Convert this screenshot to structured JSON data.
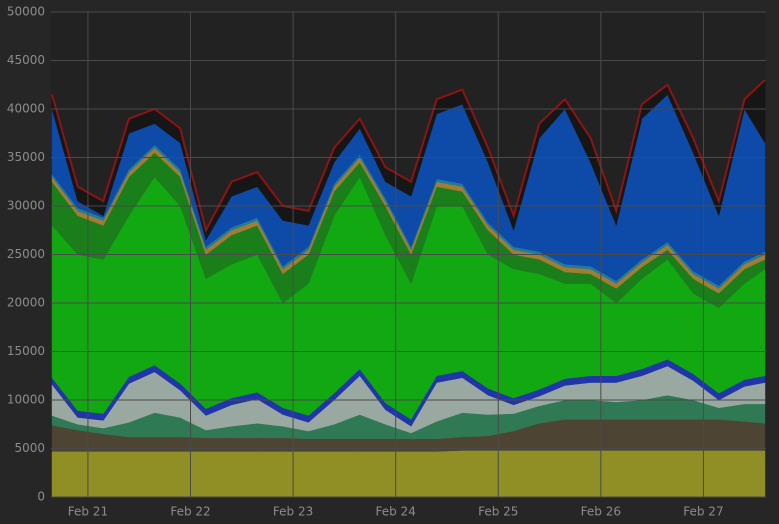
{
  "chart_data": {
    "type": "stacked-area",
    "x": [
      20.65,
      20.9,
      21.15,
      21.4,
      21.65,
      21.9,
      22.15,
      22.4,
      22.65,
      22.9,
      23.15,
      23.4,
      23.65,
      23.9,
      24.15,
      24.4,
      24.65,
      24.9,
      25.15,
      25.4,
      25.65,
      25.9,
      26.15,
      26.4,
      26.65,
      26.9,
      27.15,
      27.4,
      27.6
    ],
    "xlim": [
      20.64,
      27.61
    ],
    "xticks": [
      {
        "value": 21,
        "label": "Feb 21"
      },
      {
        "value": 22,
        "label": "Feb 22"
      },
      {
        "value": 23,
        "label": "Feb 23"
      },
      {
        "value": 24,
        "label": "Feb 24"
      },
      {
        "value": 25,
        "label": "Feb 25"
      },
      {
        "value": 26,
        "label": "Feb 26"
      },
      {
        "value": 27,
        "label": "Feb 27"
      }
    ],
    "ylim": [
      0,
      50000
    ],
    "yticks": [
      0,
      5000,
      10000,
      15000,
      20000,
      25000,
      30000,
      35000,
      40000,
      45000,
      50000
    ],
    "grid": true,
    "series": [
      {
        "color": "#8f8f26",
        "values": [
          4700,
          4700,
          4700,
          4700,
          4700,
          4700,
          4700,
          4700,
          4700,
          4700,
          4700,
          4700,
          4700,
          4700,
          4700,
          4700,
          4800,
          4800,
          4800,
          4800,
          4800,
          4800,
          4800,
          4800,
          4800,
          4800,
          4800,
          4800,
          4800
        ]
      },
      {
        "color": "#4e4433",
        "values": [
          2700,
          2200,
          1800,
          1500,
          1500,
          1500,
          1400,
          1400,
          1400,
          1400,
          1300,
          1300,
          1300,
          1300,
          1300,
          1300,
          1400,
          1500,
          2000,
          2800,
          3200,
          3200,
          3200,
          3200,
          3200,
          3200,
          3200,
          3000,
          2800
        ]
      },
      {
        "color": "#2f7a55",
        "values": [
          1000,
          600,
          600,
          1500,
          2500,
          2000,
          800,
          1200,
          1500,
          1200,
          800,
          1500,
          2500,
          1500,
          600,
          1800,
          2500,
          2200,
          1800,
          1800,
          2000,
          2000,
          1800,
          2000,
          2500,
          2000,
          1200,
          1800,
          2000
        ]
      },
      {
        "color": "#9aa8a2",
        "values": [
          3200,
          700,
          800,
          4000,
          4200,
          2800,
          1500,
          2200,
          2500,
          1200,
          900,
          2500,
          4000,
          1500,
          700,
          4000,
          3600,
          2000,
          900,
          1000,
          1500,
          1800,
          2000,
          2500,
          3000,
          2000,
          800,
          1800,
          2200
        ]
      },
      {
        "color": "#1f35a8",
        "values": [
          700,
          700,
          700,
          700,
          700,
          700,
          700,
          700,
          700,
          700,
          700,
          700,
          700,
          700,
          700,
          700,
          700,
          700,
          700,
          700,
          700,
          700,
          700,
          700,
          700,
          700,
          700,
          700,
          700
        ]
      },
      {
        "color": "#12a812",
        "values": [
          15700,
          16100,
          15900,
          16600,
          19400,
          18300,
          13400,
          13800,
          14200,
          10800,
          13600,
          18300,
          19800,
          17300,
          14000,
          17500,
          17000,
          13800,
          13300,
          11900,
          9800,
          9500,
          7500,
          9300,
          10300,
          8300,
          8800,
          9900,
          11000
        ]
      },
      {
        "color": "#1a7e1a",
        "values": [
          4500,
          4000,
          3500,
          4000,
          2500,
          3000,
          2500,
          3000,
          3000,
          3000,
          3000,
          2500,
          1500,
          3000,
          3000,
          2000,
          1500,
          2500,
          1500,
          1500,
          1200,
          1000,
          1500,
          1200,
          1000,
          1500,
          1500,
          1500,
          1000
        ]
      },
      {
        "color": "#a27c32",
        "values": [
          500,
          500,
          500,
          500,
          500,
          500,
          500,
          500,
          500,
          500,
          500,
          500,
          500,
          500,
          500,
          500,
          500,
          500,
          500,
          500,
          500,
          500,
          500,
          500,
          500,
          500,
          500,
          500,
          500
        ]
      },
      {
        "color": "#1f7c9c",
        "values": [
          300,
          300,
          300,
          300,
          300,
          300,
          300,
          300,
          300,
          300,
          300,
          300,
          300,
          300,
          300,
          300,
          300,
          300,
          300,
          300,
          300,
          300,
          300,
          300,
          300,
          300,
          300,
          300,
          300
        ]
      },
      {
        "color": "#0e4aa8",
        "values": [
          6700,
          700,
          200,
          3700,
          2200,
          2700,
          700,
          3200,
          3200,
          4700,
          2200,
          2200,
          2700,
          1700,
          5200,
          6700,
          8200,
          6200,
          1700,
          11700,
          16000,
          10700,
          5700,
          14500,
          15200,
          12200,
          7200,
          15700,
          11200
        ]
      },
      {
        "color": "#161616",
        "line_color": "#8e1414",
        "values": [
          1500,
          1500,
          1500,
          1500,
          1500,
          1500,
          1000,
          1500,
          1500,
          1500,
          1500,
          1500,
          1000,
          1500,
          1500,
          1500,
          1500,
          1500,
          1500,
          1500,
          1000,
          2500,
          1500,
          1500,
          1000,
          1500,
          1500,
          1000,
          6500
        ]
      }
    ]
  }
}
